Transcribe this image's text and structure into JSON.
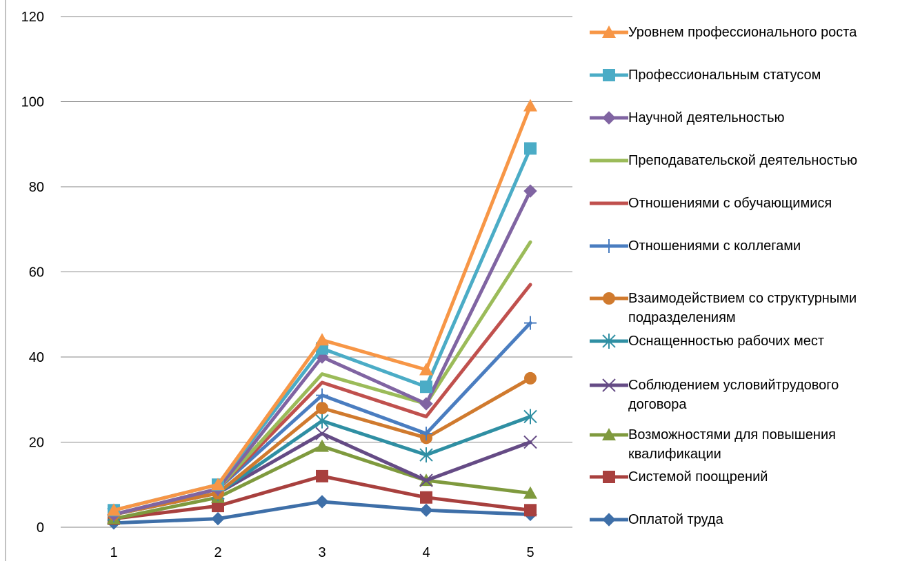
{
  "chart_data": {
    "type": "line",
    "x": [
      "1",
      "2",
      "3",
      "4",
      "5"
    ],
    "ylim": [
      0,
      120
    ],
    "yticks": [
      "0",
      "20",
      "40",
      "60",
      "80",
      "100",
      "120"
    ],
    "grid": "horizontal",
    "legend_position": "right",
    "series": [
      {
        "name": "Оплатой труда",
        "color": "#3E6FA8",
        "marker": "diamond",
        "values": [
          1,
          2,
          6,
          4,
          3
        ]
      },
      {
        "name": "Системой поощрений",
        "color": "#A8403E",
        "marker": "square",
        "values": [
          2,
          5,
          12,
          7,
          4
        ]
      },
      {
        "name": "Возможностями для повышения квалификации",
        "label_lines": [
          "Возможностями для повышения",
          "квалификации"
        ],
        "color": "#7F9A3E",
        "marker": "triangle",
        "values": [
          2,
          7,
          19,
          11,
          8
        ]
      },
      {
        "name": "Соблюдением условийтрудового договора",
        "label_lines": [
          "Соблюдением условийтрудового",
          "договора"
        ],
        "color": "#654B85",
        "marker": "x",
        "values": [
          3,
          8,
          22,
          11,
          20
        ]
      },
      {
        "name": "Оснащенностью рабочих мест",
        "color": "#2F8FA3",
        "marker": "star",
        "values": [
          3,
          8,
          25,
          17,
          26
        ]
      },
      {
        "name": "Взаимодействием со структурными подразделениям",
        "label_lines": [
          "Взаимодействием со структурными",
          "подразделениям"
        ],
        "color": "#D07A2E",
        "marker": "circle",
        "values": [
          3,
          8,
          28,
          21,
          35
        ]
      },
      {
        "name": "Отношениями с коллегами",
        "color": "#4A7DC0",
        "marker": "plus",
        "values": [
          3,
          9,
          31,
          22,
          48
        ]
      },
      {
        "name": "Отношениями с обучающимися",
        "color": "#C0504D",
        "marker": "none",
        "values": [
          3,
          9,
          34,
          26,
          57
        ]
      },
      {
        "name": "Преподавательской деятельностью",
        "color": "#9BBB59",
        "marker": "none",
        "values": [
          3,
          9,
          36,
          29,
          67
        ]
      },
      {
        "name": "Научной деятельностью",
        "color": "#8064A2",
        "marker": "diamond",
        "values": [
          3,
          9,
          40,
          29,
          79
        ]
      },
      {
        "name": "Профессиональным статусом",
        "color": "#4BACC6",
        "marker": "square",
        "values": [
          4,
          10,
          42,
          33,
          89
        ]
      },
      {
        "name": "Уровнем профессионального роста",
        "color": "#F79646",
        "marker": "triangle",
        "values": [
          4,
          10,
          44,
          37,
          99
        ]
      }
    ]
  }
}
